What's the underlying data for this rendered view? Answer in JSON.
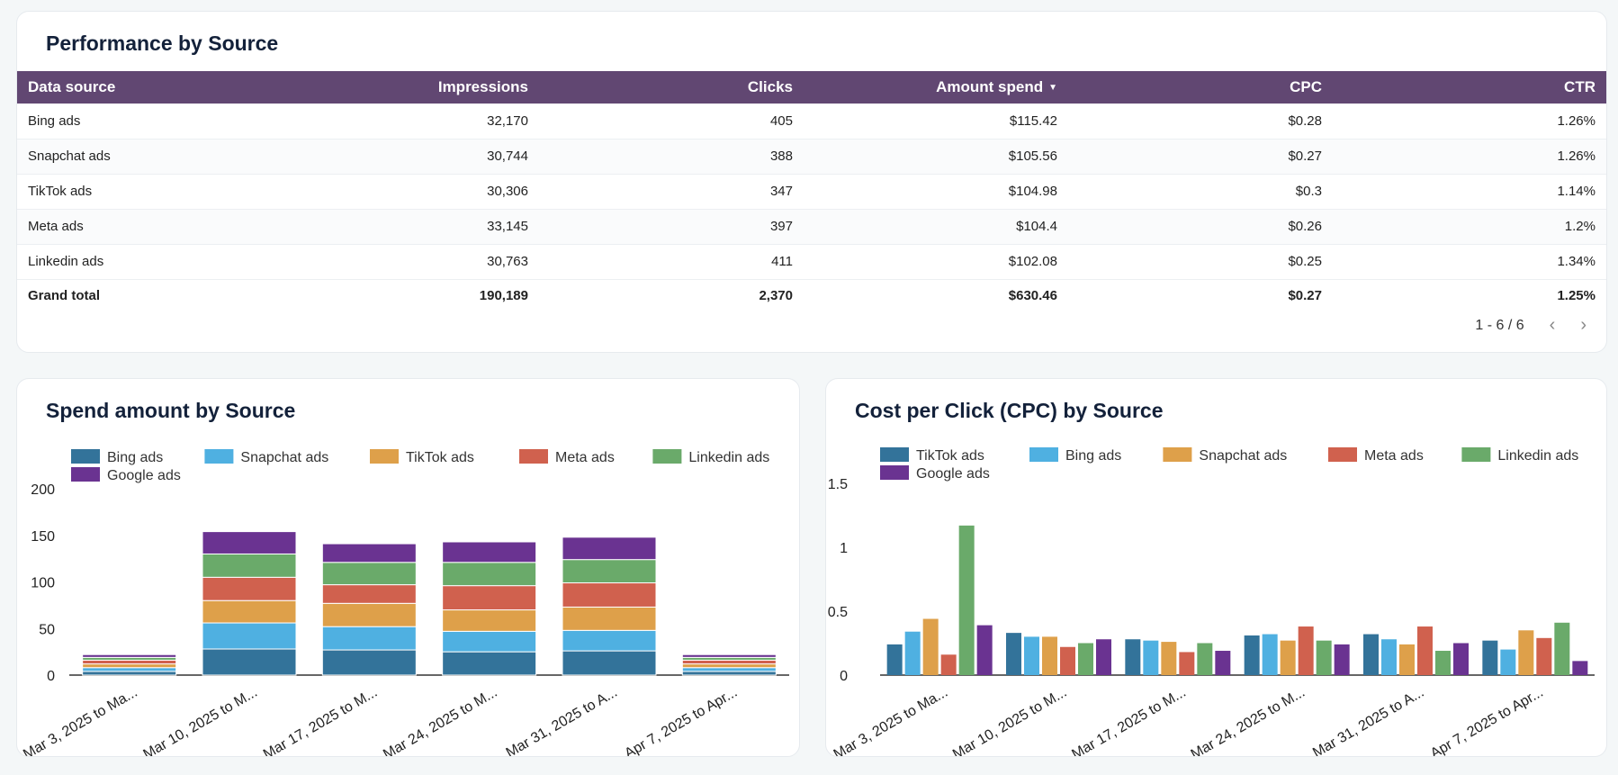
{
  "table_card": {
    "title": "Performance by Source",
    "headers": [
      "Data source",
      "Impressions",
      "Clicks",
      "Amount spend",
      "CPC",
      "CTR"
    ],
    "rows": [
      {
        "source": "Bing ads",
        "impressions": "32,170",
        "clicks": "405",
        "spend": "$115.42",
        "cpc": "$0.28",
        "ctr": "1.26%"
      },
      {
        "source": "Snapchat ads",
        "impressions": "30,744",
        "clicks": "388",
        "spend": "$105.56",
        "cpc": "$0.27",
        "ctr": "1.26%"
      },
      {
        "source": "TikTok ads",
        "impressions": "30,306",
        "clicks": "347",
        "spend": "$104.98",
        "cpc": "$0.3",
        "ctr": "1.14%"
      },
      {
        "source": "Meta ads",
        "impressions": "33,145",
        "clicks": "397",
        "spend": "$104.4",
        "cpc": "$0.26",
        "ctr": "1.2%"
      },
      {
        "source": "Linkedin ads",
        "impressions": "30,763",
        "clicks": "411",
        "spend": "$102.08",
        "cpc": "$0.25",
        "ctr": "1.34%"
      }
    ],
    "total": {
      "source": "Grand total",
      "impressions": "190,189",
      "clicks": "2,370",
      "spend": "$630.46",
      "cpc": "$0.27",
      "ctr": "1.25%"
    },
    "pagination": "1 - 6 / 6",
    "sort_icon": "caret-down-icon",
    "prev_icon": "chevron-left-icon",
    "next_icon": "chevron-right-icon"
  },
  "colors": {
    "header_bg": "#614772",
    "bing": "#33739a",
    "snapchat": "#4fb0e1",
    "tiktok": "#dea04a",
    "meta": "#d0614e",
    "linkedin": "#6aaa6a",
    "google": "#6a3391"
  },
  "chart_data": [
    {
      "type": "bar",
      "stacked": true,
      "title": "Spend amount by Source",
      "legend_position": "top-left",
      "categories": [
        "Mar 3, 2025 to Ma...",
        "Mar 10, 2025 to M...",
        "Mar 17, 2025 to M...",
        "Mar 24, 2025 to M...",
        "Mar 31, 2025 to A...",
        "Apr 7, 2025 to Apr..."
      ],
      "ylim": [
        0,
        200
      ],
      "yticks": [
        "0",
        "50",
        "100",
        "150",
        "200"
      ],
      "series": [
        {
          "name": "Bing ads",
          "color": "#33739a",
          "values": [
            4,
            28,
            27,
            25,
            26,
            4
          ]
        },
        {
          "name": "Snapchat ads",
          "color": "#4fb0e1",
          "values": [
            4,
            28,
            25,
            22,
            22,
            4
          ]
        },
        {
          "name": "TikTok ads",
          "color": "#dea04a",
          "values": [
            4,
            24,
            25,
            23,
            25,
            4
          ]
        },
        {
          "name": "Meta ads",
          "color": "#d0614e",
          "values": [
            4,
            25,
            20,
            26,
            26,
            4
          ]
        },
        {
          "name": "Linkedin ads",
          "color": "#6aaa6a",
          "values": [
            3,
            25,
            24,
            25,
            25,
            3
          ]
        },
        {
          "name": "Google ads",
          "color": "#6a3391",
          "values": [
            3,
            24,
            20,
            22,
            24,
            3
          ]
        }
      ]
    },
    {
      "type": "bar",
      "stacked": false,
      "title": "Cost per Click (CPC) by Source",
      "legend_position": "top-left",
      "categories": [
        "Mar 3, 2025 to Ma...",
        "Mar 10, 2025 to M...",
        "Mar 17, 2025 to M...",
        "Mar 24, 2025 to M...",
        "Mar 31, 2025 to A...",
        "Apr 7, 2025 to Apr..."
      ],
      "ylim": [
        0,
        1.5
      ],
      "yticks": [
        "0",
        "0.5",
        "1",
        "1.5"
      ],
      "series": [
        {
          "name": "TikTok ads",
          "color": "#33739a",
          "values": [
            0.24,
            0.33,
            0.28,
            0.31,
            0.32,
            0.27
          ]
        },
        {
          "name": "Bing ads",
          "color": "#4fb0e1",
          "values": [
            0.34,
            0.3,
            0.27,
            0.32,
            0.28,
            0.2
          ]
        },
        {
          "name": "Snapchat ads",
          "color": "#dea04a",
          "values": [
            0.44,
            0.3,
            0.26,
            0.27,
            0.24,
            0.35
          ]
        },
        {
          "name": "Meta ads",
          "color": "#d0614e",
          "values": [
            0.16,
            0.22,
            0.18,
            0.38,
            0.38,
            0.29
          ]
        },
        {
          "name": "Linkedin ads",
          "color": "#6aaa6a",
          "values": [
            1.17,
            0.25,
            0.25,
            0.27,
            0.19,
            0.41
          ]
        },
        {
          "name": "Google ads",
          "color": "#6a3391",
          "values": [
            0.39,
            0.28,
            0.19,
            0.24,
            0.25,
            0.11
          ]
        }
      ]
    }
  ]
}
